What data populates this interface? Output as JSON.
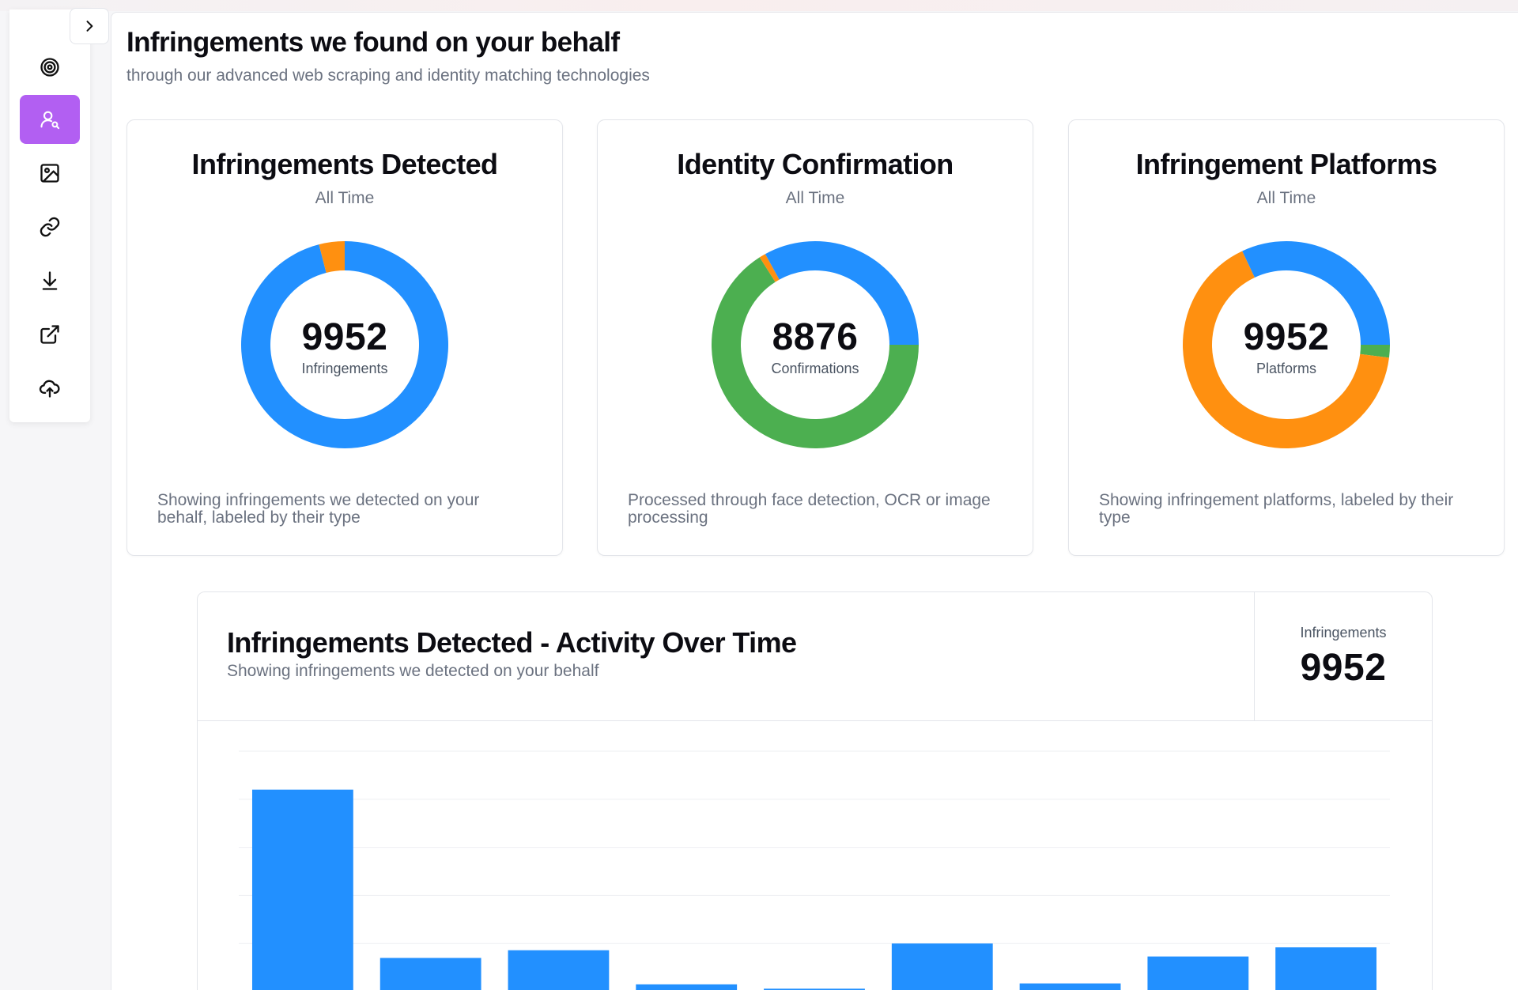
{
  "sidebar": {
    "collapse_icon": "chevron-right-icon",
    "items": [
      {
        "icon": "target-icon",
        "active": false
      },
      {
        "icon": "user-search-icon",
        "active": true
      },
      {
        "icon": "image-icon",
        "active": false
      },
      {
        "icon": "link-icon",
        "active": false
      },
      {
        "icon": "download-icon",
        "active": false
      },
      {
        "icon": "external-link-icon",
        "active": false
      },
      {
        "icon": "cloud-upload-icon",
        "active": false
      }
    ],
    "active_color": "#b25ff2"
  },
  "header": {
    "title": "Infringements we found on your behalf",
    "subtitle": "through our advanced web scraping and identity matching technologies"
  },
  "cards": [
    {
      "title": "Infringements Detected",
      "period": "All Time",
      "value": "9952",
      "value_label": "Infringements",
      "footer": "Showing infringements we detected on your behalf, labeled by their type"
    },
    {
      "title": "Identity Confirmation",
      "period": "All Time",
      "value": "8876",
      "value_label": "Confirmations",
      "footer": "Processed through face detection, OCR or image processing"
    },
    {
      "title": "Infringement Platforms",
      "period": "All Time",
      "value": "9952",
      "value_label": "Platforms",
      "footer": "Showing infringement platforms, labeled by their type"
    }
  ],
  "activity": {
    "title": "Infringements Detected - Activity Over Time",
    "subtitle": "Showing infringements we detected on your behalf",
    "stat_label": "Infringements",
    "stat_value": "9952"
  },
  "colors": {
    "blue": "#2290ff",
    "orange": "#ff9010",
    "green": "#4caf50",
    "grid": "#eeeff2"
  },
  "chart_data": [
    {
      "type": "pie",
      "donut": true,
      "slices": [
        {
          "value": 0.96,
          "color": "#2290ff"
        },
        {
          "value": 0.04,
          "color": "#ff9010"
        }
      ]
    },
    {
      "type": "pie",
      "donut": true,
      "slices": [
        {
          "value": 0.25,
          "color": "#2290ff"
        },
        {
          "value": 0.66,
          "color": "#4caf50"
        },
        {
          "value": 0.01,
          "color": "#ff9010"
        },
        {
          "value": 0.08,
          "color": "#2290ff"
        }
      ]
    },
    {
      "type": "pie",
      "donut": true,
      "slices": [
        {
          "value": 0.25,
          "color": "#2290ff"
        },
        {
          "value": 0.02,
          "color": "#4caf50"
        },
        {
          "value": 0.66,
          "color": "#ff9010"
        },
        {
          "value": 0.07,
          "color": "#2290ff"
        }
      ]
    },
    {
      "type": "bar",
      "values": [
        4200,
        700,
        860,
        150,
        60,
        1000,
        170,
        730,
        920
      ],
      "ylim": [
        0,
        5000
      ],
      "grid": true,
      "color": "#2290ff"
    }
  ]
}
